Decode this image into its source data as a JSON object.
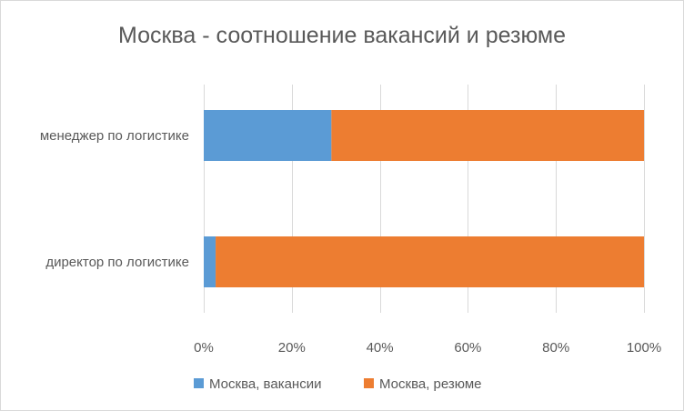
{
  "chart_data": {
    "type": "bar",
    "orientation": "horizontal",
    "stacked": "percent",
    "title": "Москва - соотношение вакансий и резюме",
    "categories": [
      "менеджер по логистике",
      "директор по логистике"
    ],
    "series": [
      {
        "name": "Москва, вакансии",
        "color": "#5b9bd5",
        "values": [
          0.29,
          0.027
        ]
      },
      {
        "name": "Москва, резюме",
        "color": "#ed7d31",
        "values": [
          0.71,
          0.973
        ]
      }
    ],
    "xticks": [
      "0%",
      "20%",
      "40%",
      "60%",
      "80%",
      "100%"
    ],
    "xlim": [
      0,
      1
    ],
    "grid": true,
    "legend_position": "bottom"
  }
}
